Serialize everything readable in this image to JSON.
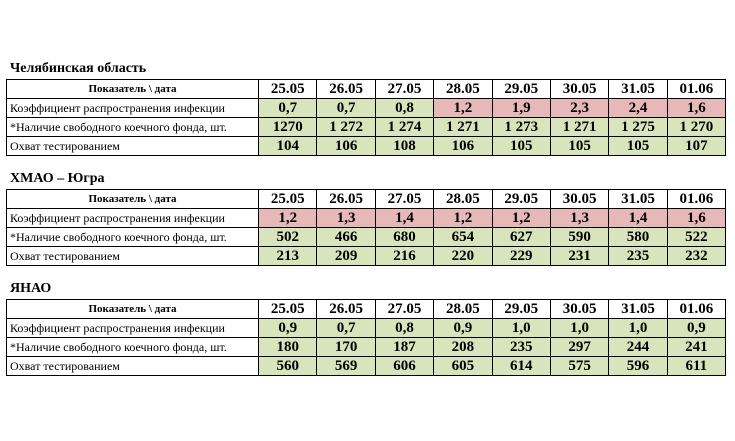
{
  "header_label": "Показатель \\ дата",
  "dates": [
    "25.05",
    "26.05",
    "27.05",
    "28.05",
    "29.05",
    "30.05",
    "31.05",
    "01.06"
  ],
  "row_labels": [
    "Коэффициент распространения инфекции",
    "*Наличие свободного коечного фонда, шт.",
    "Охват тестированием"
  ],
  "colors": {
    "green": "#d8e4bc",
    "red": "#e6b8b7"
  },
  "regions": [
    {
      "title": "Челябинская область",
      "rows": [
        {
          "values": [
            "0,7",
            "0,7",
            "0,8",
            "1,2",
            "1,9",
            "2,3",
            "2,4",
            "1,6"
          ],
          "status": [
            "green",
            "green",
            "green",
            "red",
            "red",
            "red",
            "red",
            "red"
          ]
        },
        {
          "values": [
            "1270",
            "1 272",
            "1 274",
            "1 271",
            "1 273",
            "1 271",
            "1 275",
            "1 270"
          ],
          "status": [
            "green",
            "green",
            "green",
            "green",
            "green",
            "green",
            "green",
            "green"
          ]
        },
        {
          "values": [
            "104",
            "106",
            "108",
            "106",
            "105",
            "105",
            "105",
            "107"
          ],
          "status": [
            "green",
            "green",
            "green",
            "green",
            "green",
            "green",
            "green",
            "green"
          ]
        }
      ]
    },
    {
      "title": "ХМАО – Югра",
      "rows": [
        {
          "values": [
            "1,2",
            "1,3",
            "1,4",
            "1,2",
            "1,2",
            "1,3",
            "1,4",
            "1,6"
          ],
          "status": [
            "red",
            "red",
            "red",
            "red",
            "red",
            "red",
            "red",
            "red"
          ]
        },
        {
          "values": [
            "502",
            "466",
            "680",
            "654",
            "627",
            "590",
            "580",
            "522"
          ],
          "status": [
            "green",
            "green",
            "green",
            "green",
            "green",
            "green",
            "green",
            "green"
          ]
        },
        {
          "values": [
            "213",
            "209",
            "216",
            "220",
            "229",
            "231",
            "235",
            "232"
          ],
          "status": [
            "green",
            "green",
            "green",
            "green",
            "green",
            "green",
            "green",
            "green"
          ]
        }
      ]
    },
    {
      "title": "ЯНАО",
      "rows": [
        {
          "values": [
            "0,9",
            "0,7",
            "0,8",
            "0,9",
            "1,0",
            "1,0",
            "1,0",
            "0,9"
          ],
          "status": [
            "green",
            "green",
            "green",
            "green",
            "green",
            "green",
            "green",
            "green"
          ]
        },
        {
          "values": [
            "180",
            "170",
            "187",
            "208",
            "235",
            "297",
            "244",
            "241"
          ],
          "status": [
            "green",
            "green",
            "green",
            "green",
            "green",
            "green",
            "green",
            "green"
          ]
        },
        {
          "values": [
            "560",
            "569",
            "606",
            "605",
            "614",
            "575",
            "596",
            "611"
          ],
          "status": [
            "green",
            "green",
            "green",
            "green",
            "green",
            "green",
            "green",
            "green"
          ]
        }
      ]
    }
  ]
}
